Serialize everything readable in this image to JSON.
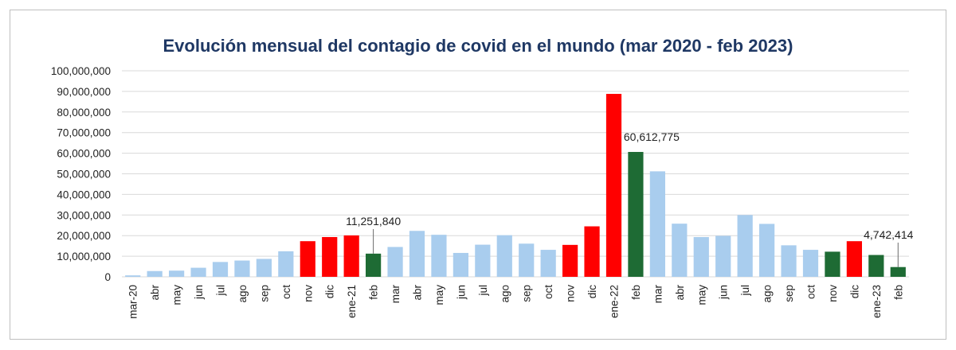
{
  "chart_data": {
    "type": "bar",
    "title": "Evolución mensual del contagio de covid en el mundo (mar 2020 - feb 2023)",
    "xlabel": "",
    "ylabel": "",
    "ylim": [
      0,
      100000000
    ],
    "yticks": [
      0,
      10000000,
      20000000,
      30000000,
      40000000,
      50000000,
      60000000,
      70000000,
      80000000,
      90000000,
      100000000
    ],
    "ytick_labels": [
      "0",
      "10,000,000",
      "20,000,000",
      "30,000,000",
      "40,000,000",
      "50,000,000",
      "60,000,000",
      "70,000,000",
      "80,000,000",
      "90,000,000",
      "100,000,000"
    ],
    "grid": true,
    "colors": {
      "light": "#a9cdee",
      "red": "#ff0000",
      "green": "#1e6b34"
    },
    "categories": [
      "mar-20",
      "abr",
      "may",
      "jun",
      "jul",
      "ago",
      "sep",
      "oct",
      "nov",
      "dic",
      "ene-21",
      "feb",
      "mar",
      "abr",
      "may",
      "jun",
      "jul",
      "ago",
      "sep",
      "oct",
      "nov",
      "dic",
      "ene-22",
      "feb",
      "mar",
      "abr",
      "may",
      "jun",
      "jul",
      "ago",
      "sep",
      "oct",
      "nov",
      "dic",
      "ene-23",
      "feb"
    ],
    "values": [
      700000,
      2800000,
      3000000,
      4400000,
      7200000,
      7900000,
      8700000,
      12400000,
      17300000,
      19300000,
      20100000,
      11251840,
      14500000,
      22300000,
      20400000,
      11600000,
      15600000,
      20200000,
      16100000,
      13100000,
      15500000,
      24500000,
      88800000,
      60612775,
      51200000,
      25800000,
      19300000,
      19900000,
      30000000,
      25700000,
      15300000,
      13100000,
      12200000,
      17300000,
      10600000,
      4742414
    ],
    "bar_colors": [
      "light",
      "light",
      "light",
      "light",
      "light",
      "light",
      "light",
      "light",
      "red",
      "red",
      "red",
      "green",
      "light",
      "light",
      "light",
      "light",
      "light",
      "light",
      "light",
      "light",
      "red",
      "red",
      "red",
      "green",
      "light",
      "light",
      "light",
      "light",
      "light",
      "light",
      "light",
      "light",
      "green",
      "red",
      "green",
      "green"
    ],
    "annotations": [
      {
        "index": 11,
        "text": "11,251,840"
      },
      {
        "index": 23,
        "text": "60,612,775"
      },
      {
        "index": 35,
        "text": "4,742,414"
      }
    ]
  }
}
